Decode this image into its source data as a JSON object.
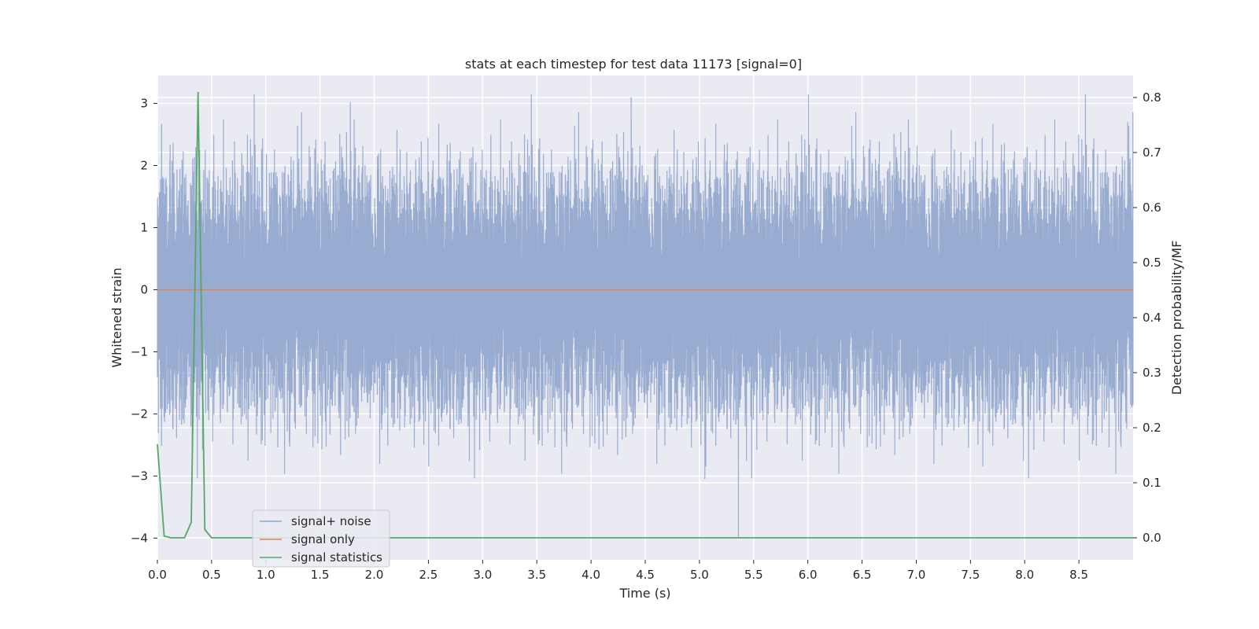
{
  "chart_data": {
    "type": "line",
    "title": "stats at each timestep for test data 11173 [signal=0]",
    "xlabel": "Time (s)",
    "ylabel_left": "Whitened strain",
    "ylabel_right": "Detection probability/MF",
    "xlim": [
      0.0,
      9.0
    ],
    "ylim_left": [
      -4.35,
      3.45
    ],
    "ylim_right": [
      -0.04,
      0.84
    ],
    "xticks": [
      0.0,
      0.5,
      1.0,
      1.5,
      2.0,
      2.5,
      3.0,
      3.5,
      4.0,
      4.5,
      5.0,
      5.5,
      6.0,
      6.5,
      7.0,
      7.5,
      8.0,
      8.5
    ],
    "xtick_labels": [
      "0.0",
      "0.5",
      "1.0",
      "1.5",
      "2.0",
      "2.5",
      "3.0",
      "3.5",
      "4.0",
      "4.5",
      "5.0",
      "5.5",
      "6.0",
      "6.5",
      "7.0",
      "7.5",
      "8.0",
      "8.5"
    ],
    "yticks_left": [
      3,
      2,
      1,
      0,
      -1,
      -2,
      -3,
      -4
    ],
    "ytick_labels_left": [
      "3",
      "2",
      "1",
      "0",
      "−1",
      "−2",
      "−3",
      "−4"
    ],
    "yticks_right": [
      0.8,
      0.7,
      0.6,
      0.5,
      0.4,
      0.3,
      0.2,
      0.1,
      0.0
    ],
    "ytick_labels_right": [
      "0.8",
      "0.7",
      "0.6",
      "0.5",
      "0.4",
      "0.3",
      "0.2",
      "0.1",
      "0.0"
    ],
    "grid": true,
    "legend_position": "lower-left",
    "series": [
      {
        "name": "signal+ noise",
        "axis": "left",
        "color": "#8fa4cc",
        "style": "dense-noise",
        "sample_rate_hz": 2048,
        "approx_std": 0.95,
        "notable_values": [
          {
            "x": 0.39,
            "y": 2.25
          },
          {
            "x": 1.78,
            "y": 3.02
          },
          {
            "x": 4.37,
            "y": 3.1
          },
          {
            "x": 5.36,
            "y": -4.0
          },
          {
            "x": 5.05,
            "y": -3.05
          },
          {
            "x": 8.95,
            "y": 2.7
          }
        ]
      },
      {
        "name": "signal only",
        "axis": "left",
        "color": "#dd8452",
        "x": [
          0.0,
          9.0
        ],
        "y": [
          0.0,
          0.0
        ]
      },
      {
        "name": "signal statistics",
        "axis": "right",
        "color": "#55a868",
        "x": [
          0.0,
          0.0625,
          0.125,
          0.1875,
          0.25,
          0.3125,
          0.375,
          0.4375,
          0.5,
          0.5625,
          9.0
        ],
        "y": [
          0.17,
          0.003,
          0.0,
          0.0,
          0.0,
          0.028,
          0.81,
          0.015,
          0.0,
          0.0,
          0.0
        ]
      }
    ]
  }
}
